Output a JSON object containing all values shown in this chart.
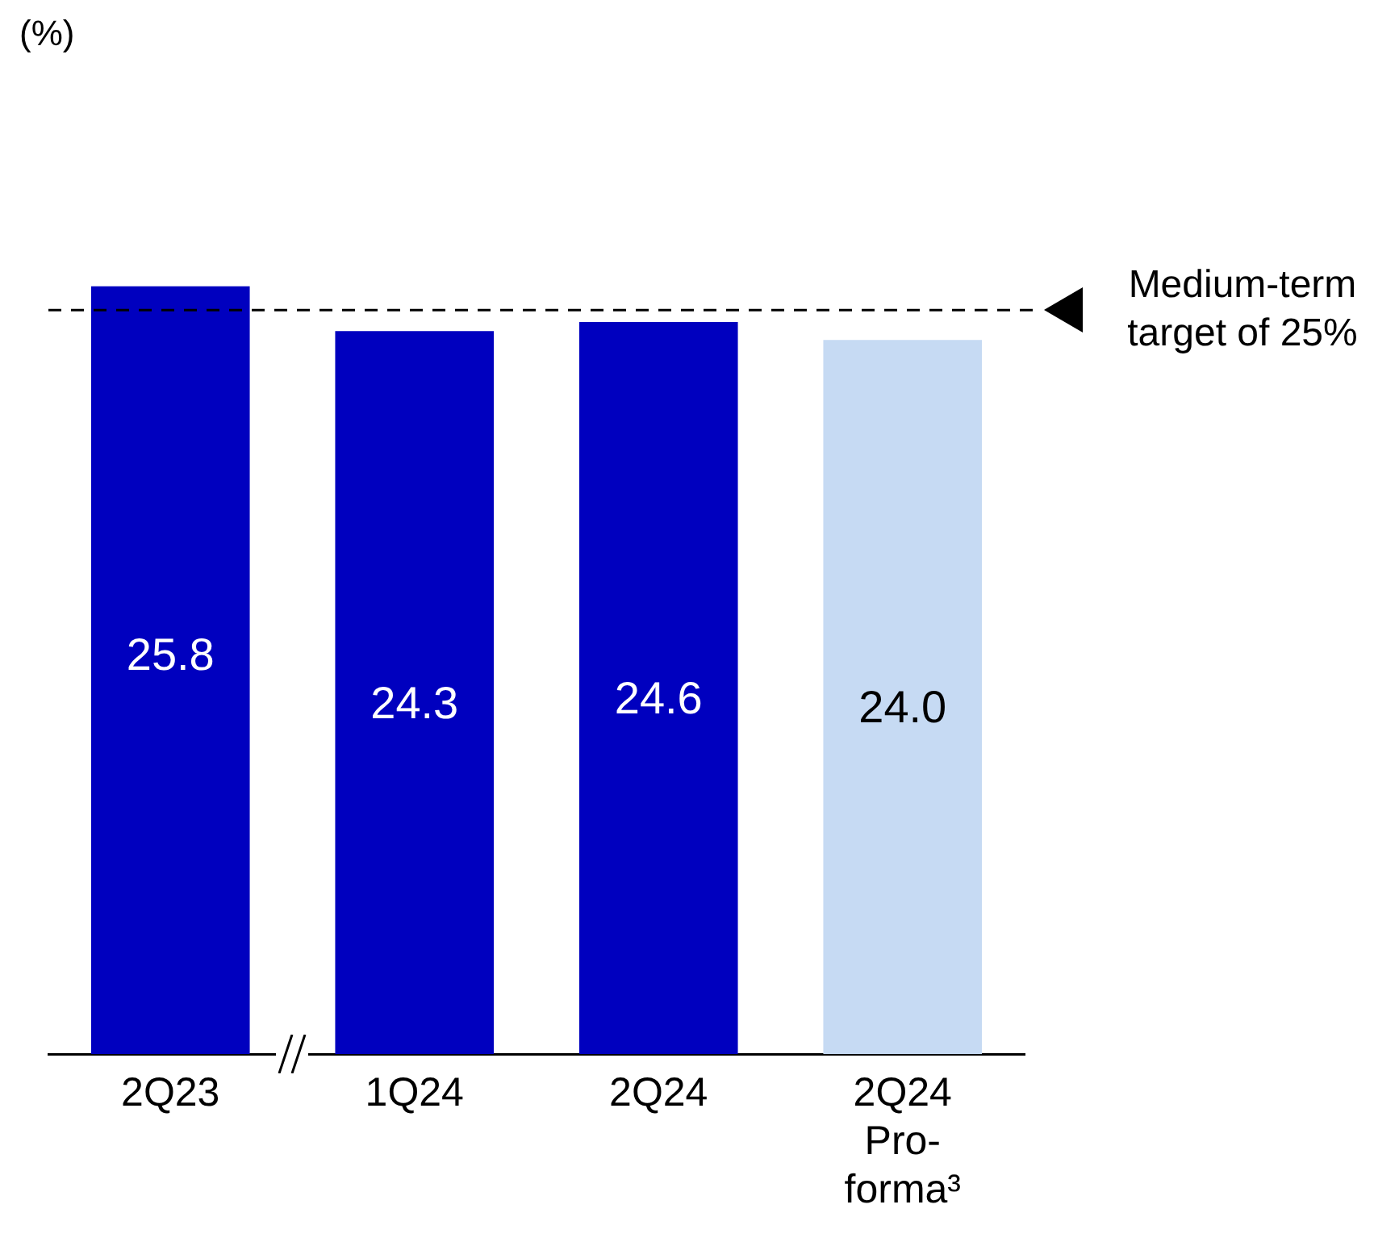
{
  "chart_data": {
    "type": "bar",
    "annotations": [
      "(%)"
    ],
    "categories": [
      "2Q23",
      "1Q24",
      "2Q24",
      "2Q24\nPro-\nforma³"
    ],
    "values": [
      25.8,
      24.3,
      24.6,
      24.0
    ],
    "colors": [
      "#0000bf",
      "#0000bf",
      "#0000bf",
      "#c6daf3"
    ],
    "value_labels": [
      "25.8",
      "24.3",
      "24.6",
      "24.0"
    ],
    "grid": false,
    "ref_lines": [
      {
        "axis": "y",
        "value": 25,
        "label": "Medium-term target of 25%",
        "color": "#000000",
        "line_style": "dashed"
      }
    ]
  }
}
